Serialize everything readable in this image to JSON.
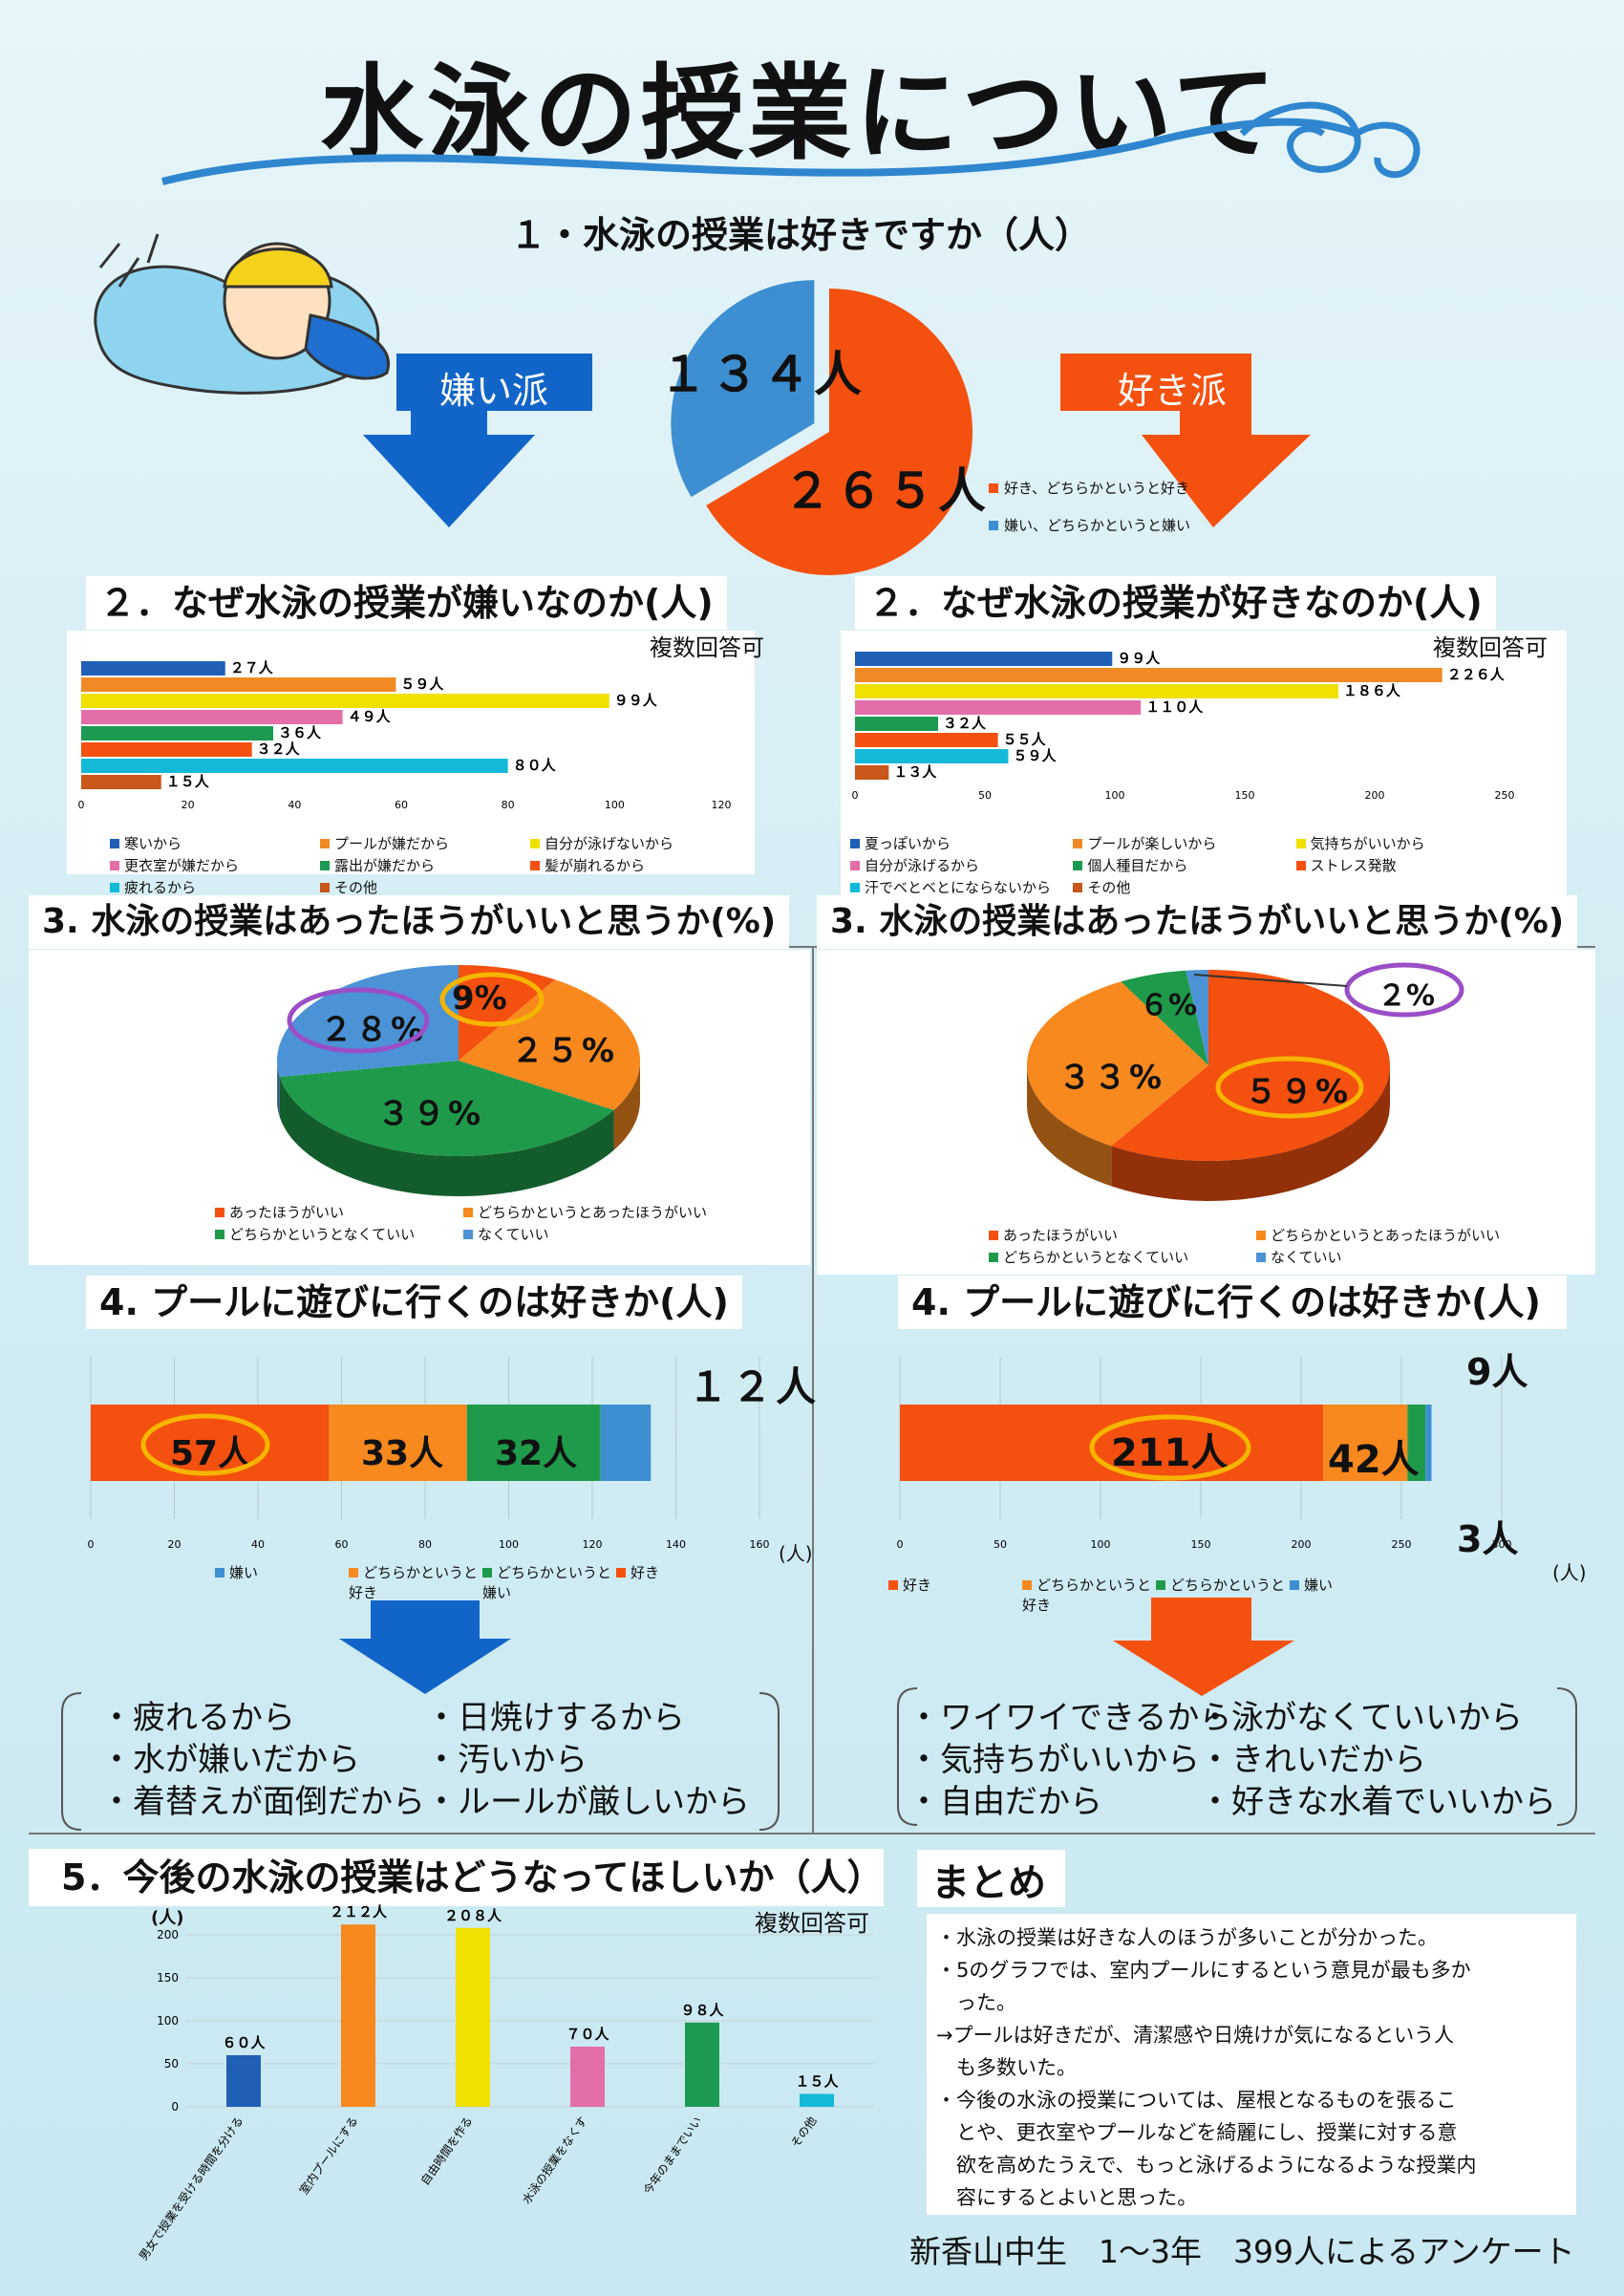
{
  "title": "水泳の授業について",
  "section1": {
    "title": "１・水泳の授業は好きですか（人）",
    "dislike_arrow": "嫌い派",
    "like_arrow": "好き派",
    "chart_data": {
      "type": "pie",
      "title": "",
      "labels": [
        "好き、どちらかというと好き",
        "嫌い、どちらかというと嫌い"
      ],
      "values": [
        265,
        134
      ],
      "value_labels": [
        "２６５人",
        "１３４人"
      ],
      "colors": [
        "#f4500f",
        "#3d8fd1"
      ]
    }
  },
  "section2_left": {
    "title": "２．なぜ水泳の授業が嫌いなのか(人)",
    "note": "複数回答可",
    "chart_data": {
      "type": "bar",
      "orientation": "horizontal",
      "categories": [
        "寒いから",
        "プールが嫌だから",
        "自分が泳げないから",
        "更衣室が嫌だから",
        "露出が嫌だから",
        "髪が崩れるから",
        "疲れるから",
        "その他"
      ],
      "values": [
        27,
        59,
        99,
        49,
        36,
        32,
        80,
        15
      ],
      "value_labels": [
        "２７人",
        "５９人",
        "９９人",
        "４９人",
        "３６人",
        "３２人",
        "８０人",
        "１５人"
      ],
      "colors": [
        "#1f5fb5",
        "#f08a24",
        "#f0e000",
        "#e46fa8",
        "#1d9a52",
        "#f4500f",
        "#14b9d8",
        "#c9561a"
      ],
      "xlim": [
        0,
        120
      ],
      "xticks": [
        0,
        20,
        40,
        60,
        80,
        100,
        120
      ]
    }
  },
  "section2_right": {
    "title": "２．なぜ水泳の授業が好きなのか(人)",
    "note": "複数回答可",
    "chart_data": {
      "type": "bar",
      "orientation": "horizontal",
      "categories": [
        "夏っぽいから",
        "プールが楽しいから",
        "気持ちがいいから",
        "自分が泳げるから",
        "個人種目だから",
        "ストレス発散",
        "汗でベとベとにならないから",
        "その他"
      ],
      "values": [
        99,
        226,
        186,
        110,
        32,
        55,
        59,
        13
      ],
      "value_labels": [
        "９９人",
        "２２６人",
        "１８６人",
        "１１０人",
        "３２人",
        "５５人",
        "５９人",
        "１３人"
      ],
      "colors": [
        "#1f5fb5",
        "#f08a24",
        "#f0e000",
        "#e46fa8",
        "#1d9a52",
        "#f4500f",
        "#14b9d8",
        "#c9561a"
      ],
      "xlim": [
        0,
        250
      ],
      "xticks": [
        0,
        50,
        100,
        150,
        200,
        250
      ]
    }
  },
  "section3_left": {
    "title": "3. 水泳の授業はあったほうがいいと思うか(%)",
    "chart_data": {
      "type": "pie",
      "title": "",
      "labels": [
        "あったほうがいい",
        "どちらかというとあったほうがいい",
        "どちらかというとなくていい",
        "なくていい"
      ],
      "values": [
        9,
        25,
        39,
        28
      ],
      "value_labels": [
        "9%",
        "２５%",
        "３９%",
        "２８%"
      ],
      "colors": [
        "#f4500f",
        "#f7891e",
        "#1f9a4a",
        "#4c93d6"
      ]
    }
  },
  "section3_right": {
    "title": "3. 水泳の授業はあったほうがいいと思うか(%)",
    "chart_data": {
      "type": "pie",
      "title": "",
      "labels": [
        "あったほうがいい",
        "どちらかというとあったほうがいい",
        "どちらかというとなくていい",
        "なくていい"
      ],
      "values": [
        59,
        33,
        6,
        2
      ],
      "value_labels": [
        "５９%",
        "３３%",
        "６%",
        "２%"
      ],
      "colors": [
        "#f4500f",
        "#f7891e",
        "#1f9a4a",
        "#4c93d6"
      ]
    }
  },
  "section4_left": {
    "title": "4. プールに遊びに行くのは好きか(人)",
    "unit": "(人)",
    "chart_data": {
      "type": "bar",
      "orientation": "horizontal-stacked",
      "categories": [
        "好き",
        "どちらかというと好き",
        "どちらかというと嫌い",
        "嫌い"
      ],
      "values": [
        57,
        33,
        32,
        12
      ],
      "value_labels": [
        "57人",
        "33人",
        "32人",
        "１２人"
      ],
      "colors": [
        "#f4500f",
        "#f7891e",
        "#1f9a4a",
        "#3d8fd1"
      ],
      "legend_order": [
        3,
        1,
        2,
        0
      ],
      "xlim": [
        0,
        160
      ],
      "xticks": [
        0,
        20,
        40,
        60,
        80,
        100,
        120,
        140,
        160
      ]
    }
  },
  "section4_right": {
    "title": "4. プールに遊びに行くのは好きか(人)",
    "unit": "(人)",
    "chart_data": {
      "type": "bar",
      "orientation": "horizontal-stacked",
      "categories": [
        "好き",
        "どちらかというと好き",
        "どちらかというと嫌い",
        "嫌い"
      ],
      "values": [
        211,
        42,
        9,
        3
      ],
      "value_labels": [
        "211人",
        "42人",
        "9人",
        "3人"
      ],
      "colors": [
        "#f4500f",
        "#f7891e",
        "#1f9a4a",
        "#3d8fd1"
      ],
      "legend_order": [
        0,
        1,
        2,
        3
      ],
      "xlim": [
        0,
        300
      ],
      "xticks": [
        0,
        50,
        100,
        150,
        200,
        250,
        300
      ]
    }
  },
  "reasons_left": [
    "・疲れるから",
    "・日焼けするから",
    "・水が嫌いだから",
    "・汚いから",
    "・着替えが面倒だから",
    "・ルールが厳しいから"
  ],
  "reasons_right": [
    "・ワイワイできるから",
    "・泳がなくていいから",
    "・気持ちがいいから",
    "・きれいだから",
    "・自由だから",
    "・好きな水着でいいから"
  ],
  "section5": {
    "title": "5．今後の水泳の授業はどうなってほしいか（人）",
    "note": "複数回答可",
    "unit": "(人)",
    "chart_data": {
      "type": "bar",
      "categories": [
        "男女で授業を受ける時間を分ける",
        "室内プールにする",
        "自由時間を作る",
        "水泳の授業をなくす",
        "今年のままでいい",
        "その他"
      ],
      "values": [
        60,
        212,
        208,
        70,
        98,
        15
      ],
      "value_labels": [
        "６０人",
        "２１２人",
        "２０８人",
        "７０人",
        "９８人",
        "１５人"
      ],
      "colors": [
        "#1f5fb5",
        "#f7891e",
        "#f0e000",
        "#e46fa8",
        "#1d9a52",
        "#14b9d8"
      ],
      "ylim": [
        0,
        200
      ],
      "yticks": [
        0,
        50,
        100,
        150,
        200
      ]
    }
  },
  "summary": {
    "title": "まとめ",
    "lines": [
      "・水泳の授業は好きな人のほうが多いことが分かった。",
      "・5のグラフでは、室内プールにするという意見が最も多か",
      "　った。",
      "→プールは好きだが、清潔感や日焼けが気になるという人",
      "　も多数いた。",
      "・今後の水泳の授業については、屋根となるものを張るこ",
      "　とや、更衣室やプールなどを綺麗にし、授業に対する意",
      "　欲を高めたうえで、もっと泳げるようになるような授業内",
      "　容にするとよいと思った。"
    ]
  },
  "footer": "新香山中生　1～3年　399人によるアンケート"
}
